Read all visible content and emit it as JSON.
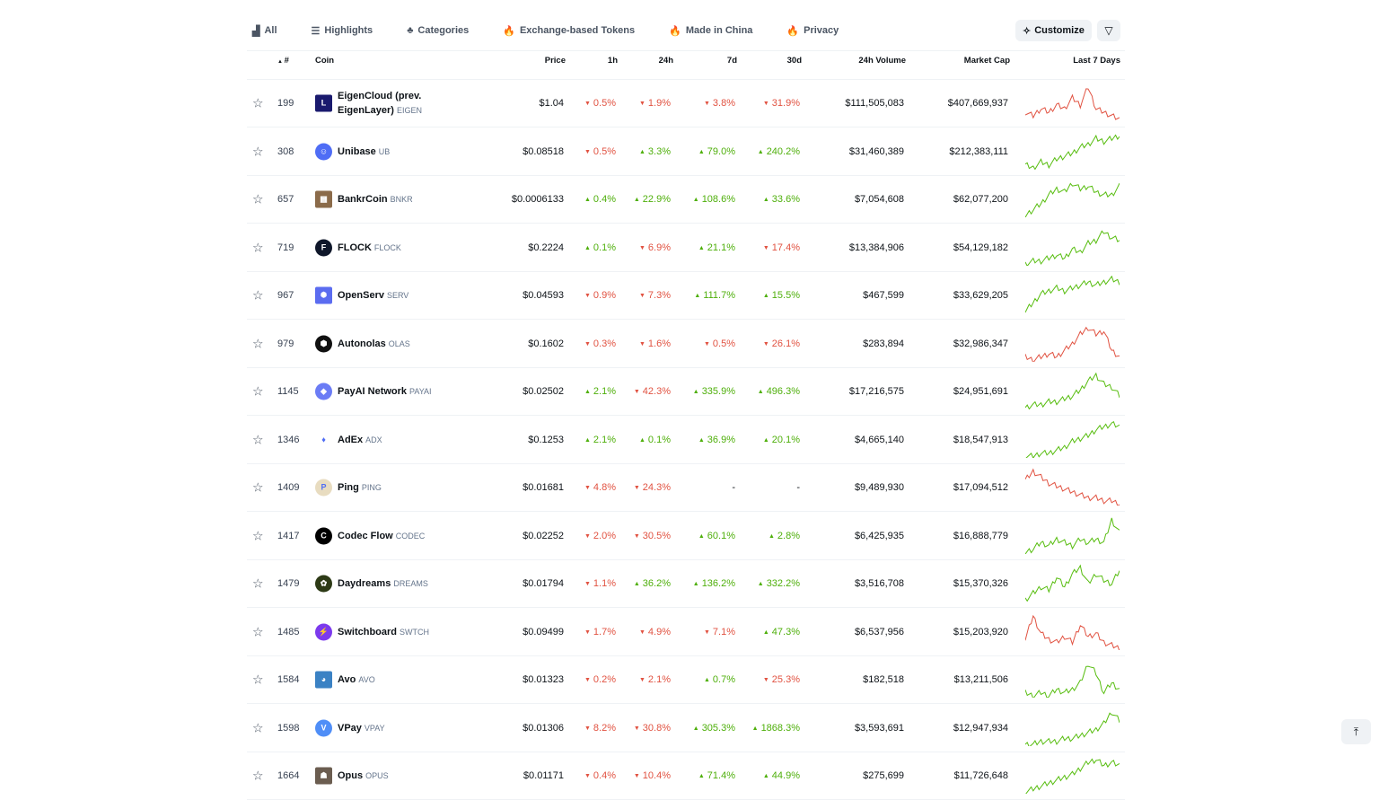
{
  "tabs": [
    {
      "label": "All",
      "icon": "chart-icon"
    },
    {
      "label": "Highlights",
      "icon": "list-icon"
    },
    {
      "label": "Categories",
      "icon": "shapes-icon"
    },
    {
      "label": "Exchange-based Tokens",
      "icon": "fire-icon"
    },
    {
      "label": "Made in China",
      "icon": "fire-icon"
    },
    {
      "label": "Privacy",
      "icon": "fire-icon"
    }
  ],
  "customize_label": "Customize",
  "columns": {
    "rank": "#",
    "coin": "Coin",
    "price": "Price",
    "h1": "1h",
    "h24": "24h",
    "d7": "7d",
    "d30": "30d",
    "volume": "24h Volume",
    "mcap": "Market Cap",
    "spark": "Last 7 Days"
  },
  "colors": {
    "up": "#4eaf0a",
    "down": "#e15241"
  },
  "rows": [
    {
      "rank": "199",
      "name": "EigenCloud (prev. EigenLayer)",
      "sym": "EIGEN",
      "logo": "#1a1a6e",
      "lt": "L",
      "price": "$1.04",
      "h1": "0.5%",
      "h1d": "dn",
      "h24": "1.9%",
      "h24d": "dn",
      "d7": "3.8%",
      "d7d": "dn",
      "d30": "31.9%",
      "d30d": "dn",
      "vol": "$111,505,083",
      "mcap": "$407,669,937",
      "trend": "down",
      "spark": [
        5,
        4,
        6,
        5,
        7,
        6,
        9,
        7,
        12,
        6,
        5,
        4,
        3
      ]
    },
    {
      "rank": "308",
      "name": "Unibase",
      "sym": "UB",
      "logo": "#4f6df5",
      "lt": "☺",
      "price": "$0.08518",
      "h1": "0.5%",
      "h1d": "dn",
      "h24": "3.3%",
      "h24d": "up",
      "d7": "79.0%",
      "d7d": "up",
      "d30": "240.2%",
      "d30d": "up",
      "vol": "$31,460,389",
      "mcap": "$212,383,111",
      "trend": "up",
      "spark": [
        2,
        1,
        3,
        2,
        4,
        5,
        6,
        8,
        9,
        11,
        10,
        11,
        12
      ]
    },
    {
      "rank": "657",
      "name": "BankrCoin",
      "sym": "BNKR",
      "logo": "#8b6b4a",
      "lt": "▦",
      "price": "$0.0006133",
      "h1": "0.4%",
      "h1d": "up",
      "h24": "22.9%",
      "h24d": "up",
      "d7": "108.6%",
      "d7d": "up",
      "d30": "33.6%",
      "d30d": "up",
      "vol": "$7,054,608",
      "mcap": "$62,077,200",
      "trend": "up",
      "spark": [
        1,
        3,
        5,
        8,
        10,
        9,
        12,
        10,
        11,
        9,
        8,
        8,
        11
      ]
    },
    {
      "rank": "719",
      "name": "FLOCK",
      "sym": "FLOCK",
      "logo": "#0f172a",
      "lt": "F",
      "price": "$0.2224",
      "h1": "0.1%",
      "h1d": "up",
      "h24": "6.9%",
      "h24d": "dn",
      "d7": "21.1%",
      "d7d": "up",
      "d30": "17.4%",
      "d30d": "dn",
      "vol": "$13,384,906",
      "mcap": "$54,129,182",
      "trend": "up",
      "spark": [
        1,
        2,
        2,
        3,
        4,
        3,
        6,
        5,
        8,
        9,
        12,
        10,
        9
      ]
    },
    {
      "rank": "967",
      "name": "OpenServ",
      "sym": "SERV",
      "logo": "#5b6cf0",
      "lt": "✺",
      "price": "$0.04593",
      "h1": "0.9%",
      "h1d": "dn",
      "h24": "7.3%",
      "h24d": "dn",
      "d7": "111.7%",
      "d7d": "up",
      "d30": "15.5%",
      "d30d": "up",
      "vol": "$467,599",
      "mcap": "$33,629,205",
      "trend": "up",
      "spark": [
        1,
        4,
        7,
        8,
        9,
        8,
        9,
        10,
        11,
        10,
        11,
        12,
        11
      ]
    },
    {
      "rank": "979",
      "name": "Autonolas",
      "sym": "OLAS",
      "logo": "#111",
      "lt": "⬢",
      "price": "$0.1602",
      "h1": "0.3%",
      "h1d": "dn",
      "h24": "1.6%",
      "h24d": "dn",
      "d7": "0.5%",
      "d7d": "dn",
      "d30": "26.1%",
      "d30d": "dn",
      "vol": "$283,894",
      "mcap": "$32,986,347",
      "trend": "down",
      "spark": [
        3,
        2,
        3,
        4,
        3,
        5,
        7,
        10,
        12,
        10,
        11,
        5,
        3
      ]
    },
    {
      "rank": "1145",
      "name": "PayAI Network",
      "sym": "PAYAI",
      "logo": "#6b7cf5",
      "lt": "◆",
      "price": "$0.02502",
      "h1": "2.1%",
      "h1d": "up",
      "h24": "42.3%",
      "h24d": "dn",
      "d7": "335.9%",
      "d7d": "up",
      "d30": "496.3%",
      "d30d": "up",
      "vol": "$17,216,575",
      "mcap": "$24,951,691",
      "trend": "up",
      "spark": [
        1,
        2,
        2,
        3,
        3,
        4,
        5,
        7,
        10,
        12,
        9,
        8,
        5
      ]
    },
    {
      "rank": "1346",
      "name": "AdEx",
      "sym": "ADX",
      "logo": "#ffffff",
      "lt": "♦",
      "price": "$0.1253",
      "h1": "2.1%",
      "h1d": "up",
      "h24": "0.1%",
      "h24d": "up",
      "d7": "36.9%",
      "d7d": "up",
      "d30": "20.1%",
      "d30d": "up",
      "vol": "$4,665,140",
      "mcap": "$18,547,913",
      "trend": "up",
      "spark": [
        1,
        1,
        2,
        2,
        3,
        4,
        6,
        7,
        8,
        10,
        11,
        12,
        11
      ]
    },
    {
      "rank": "1409",
      "name": "Ping",
      "sym": "PING",
      "logo": "#e8dcc0",
      "lt": "P",
      "price": "$0.01681",
      "h1": "4.8%",
      "h1d": "dn",
      "h24": "24.3%",
      "h24d": "dn",
      "d7": "-",
      "d7d": "",
      "d30": "-",
      "d30d": "",
      "vol": "$9,489,930",
      "mcap": "$17,094,512",
      "trend": "down",
      "spark": [
        9,
        12,
        10,
        8,
        7,
        6,
        5,
        4,
        3,
        3,
        2,
        2,
        1
      ]
    },
    {
      "rank": "1417",
      "name": "Codec Flow",
      "sym": "CODEC",
      "logo": "#000",
      "lt": "C",
      "price": "$0.02252",
      "h1": "2.0%",
      "h1d": "dn",
      "h24": "30.5%",
      "h24d": "dn",
      "d7": "60.1%",
      "d7d": "up",
      "d30": "2.8%",
      "d30d": "up",
      "vol": "$6,425,935",
      "mcap": "$16,888,779",
      "trend": "up",
      "spark": [
        2,
        3,
        5,
        4,
        6,
        5,
        4,
        6,
        5,
        6,
        5,
        12,
        8
      ]
    },
    {
      "rank": "1479",
      "name": "Daydreams",
      "sym": "DREAMS",
      "logo": "#2d3a16",
      "lt": "✿",
      "price": "$0.01794",
      "h1": "1.1%",
      "h1d": "dn",
      "h24": "36.2%",
      "h24d": "up",
      "d7": "136.2%",
      "d7d": "up",
      "d30": "332.2%",
      "d30d": "up",
      "vol": "$3,516,708",
      "mcap": "$15,370,326",
      "trend": "up",
      "spark": [
        2,
        4,
        6,
        5,
        9,
        6,
        10,
        12,
        7,
        10,
        8,
        7,
        11
      ]
    },
    {
      "rank": "1485",
      "name": "Switchboard",
      "sym": "SWTCH",
      "logo": "#7c3aed",
      "lt": "⚡",
      "price": "$0.09499",
      "h1": "1.7%",
      "h1d": "dn",
      "h24": "4.9%",
      "h24d": "dn",
      "d7": "7.1%",
      "d7d": "dn",
      "d30": "47.3%",
      "d30d": "up",
      "vol": "$6,537,956",
      "mcap": "$15,203,920",
      "trend": "down",
      "spark": [
        4,
        12,
        6,
        4,
        3,
        5,
        3,
        9,
        5,
        6,
        3,
        2,
        1
      ]
    },
    {
      "rank": "1584",
      "name": "Avo",
      "sym": "AVO",
      "logo": "#3b82c4",
      "lt": "◕",
      "price": "$0.01323",
      "h1": "0.2%",
      "h1d": "dn",
      "h24": "2.1%",
      "h24d": "dn",
      "d7": "0.7%",
      "d7d": "up",
      "d30": "25.3%",
      "d30d": "dn",
      "vol": "$182,518",
      "mcap": "$13,211,506",
      "trend": "up",
      "spark": [
        3,
        2,
        3,
        2,
        4,
        3,
        4,
        6,
        12,
        9,
        3,
        6,
        4
      ]
    },
    {
      "rank": "1598",
      "name": "VPay",
      "sym": "VPAY",
      "logo": "#4f8ef7",
      "lt": "V",
      "price": "$0.01306",
      "h1": "8.2%",
      "h1d": "dn",
      "h24": "30.8%",
      "h24d": "dn",
      "d7": "305.3%",
      "d7d": "up",
      "d30": "1868.3%",
      "d30d": "up",
      "vol": "$3,593,691",
      "mcap": "$12,947,934",
      "trend": "up",
      "spark": [
        1,
        1,
        2,
        2,
        2,
        3,
        3,
        4,
        5,
        6,
        8,
        12,
        9
      ]
    },
    {
      "rank": "1664",
      "name": "Opus",
      "sym": "OPUS",
      "logo": "#6b5d50",
      "lt": "☗",
      "price": "$0.01171",
      "h1": "0.4%",
      "h1d": "dn",
      "h24": "10.4%",
      "h24d": "dn",
      "d7": "71.4%",
      "d7d": "up",
      "d30": "44.9%",
      "d30d": "up",
      "vol": "$275,699",
      "mcap": "$11,726,648",
      "trend": "up",
      "spark": [
        1,
        2,
        3,
        4,
        5,
        6,
        7,
        9,
        11,
        12,
        10,
        11,
        10
      ]
    }
  ]
}
